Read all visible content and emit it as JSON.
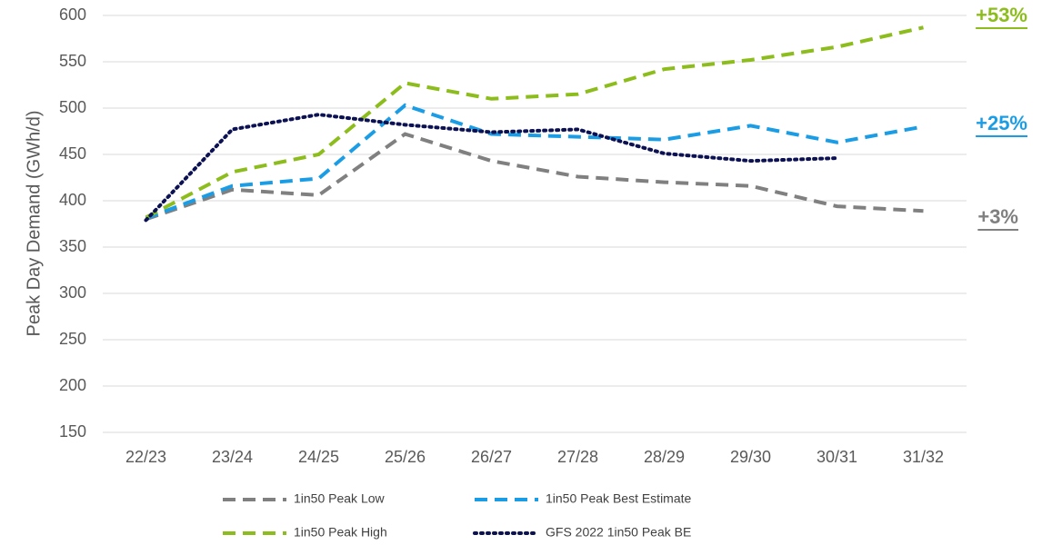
{
  "chart_data": {
    "type": "line",
    "y_label": "Peak Day Demand (GWh/d)",
    "categories": [
      "22/23",
      "23/24",
      "24/25",
      "25/26",
      "26/27",
      "27/28",
      "28/29",
      "29/30",
      "30/31",
      "31/32"
    ],
    "series": [
      {
        "name": "1in50 Peak Low",
        "color": "#808080",
        "dash": "dashed",
        "values": [
          380,
          412,
          406,
          472,
          443,
          426,
          420,
          416,
          394,
          389
        ]
      },
      {
        "name": "1in50 Peak Best Estimate",
        "color": "#1b9de6",
        "dash": "dashed",
        "values": [
          381,
          416,
          424,
          503,
          472,
          469,
          466,
          481,
          463,
          480
        ]
      },
      {
        "name": "1in50 Peak High",
        "color": "#8cbd1c",
        "dash": "dashed",
        "values": [
          382,
          431,
          450,
          527,
          510,
          515,
          542,
          552,
          566,
          587
        ]
      },
      {
        "name": "GFS 2022 1in50 Peak BE",
        "color": "#0b1152",
        "dash": "dotted",
        "values": [
          379,
          477,
          493,
          482,
          474,
          477,
          451,
          443,
          446,
          null
        ]
      }
    ],
    "annotations": [
      {
        "text": "+53%",
        "color": "#8cbd1c"
      },
      {
        "text": "+25%",
        "color": "#1b9de6"
      },
      {
        "text": "+3%",
        "color": "#808080"
      }
    ],
    "ylim": [
      150,
      600
    ],
    "yticks": [
      150,
      200,
      250,
      300,
      350,
      400,
      450,
      500,
      550,
      600
    ],
    "grid": true
  }
}
